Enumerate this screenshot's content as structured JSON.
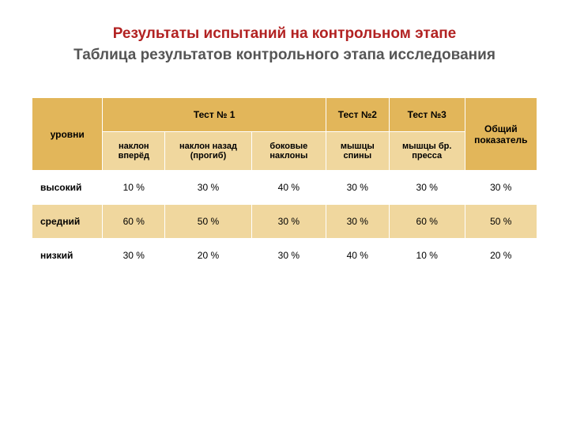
{
  "title_line1": "Результаты испытаний на контрольном этапе",
  "title_line2": "Таблица результатов контрольного этапа исследования",
  "title_color1": "#b22222",
  "title_color2": "#555555",
  "header_bg_dark": "#e2b65a",
  "header_bg_light": "#f0d79e",
  "row_white": "#ffffff",
  "row_tan": "#f0d79e",
  "text_color": "#000000",
  "border_color": "#ffffff",
  "table": {
    "col_level_label": "уровни",
    "col_last_label": "Общий показатель",
    "group_headers": [
      {
        "label": "Тест № 1",
        "span": 3
      },
      {
        "label": "Тест №2",
        "span": 1
      },
      {
        "label": "Тест №3",
        "span": 1
      }
    ],
    "sub_headers": [
      "наклон вперёд",
      "наклон назад (прогиб)",
      "боковые наклоны",
      "мышцы спины",
      "мышцы бр. пресса"
    ],
    "rows": [
      {
        "level": "высокий",
        "values": [
          "10 %",
          "30 %",
          "40 %",
          "30 %",
          "30 %",
          "30 %"
        ],
        "bg": "#ffffff"
      },
      {
        "level": "средний",
        "values": [
          "60 %",
          "50 %",
          "30 %",
          "30 %",
          "60 %",
          "50 %"
        ],
        "bg": "#f0d79e"
      },
      {
        "level": "низкий",
        "values": [
          "30 %",
          "20 %",
          "30 %",
          "40 %",
          "10 %",
          "20 %"
        ],
        "bg": "#ffffff"
      }
    ]
  }
}
